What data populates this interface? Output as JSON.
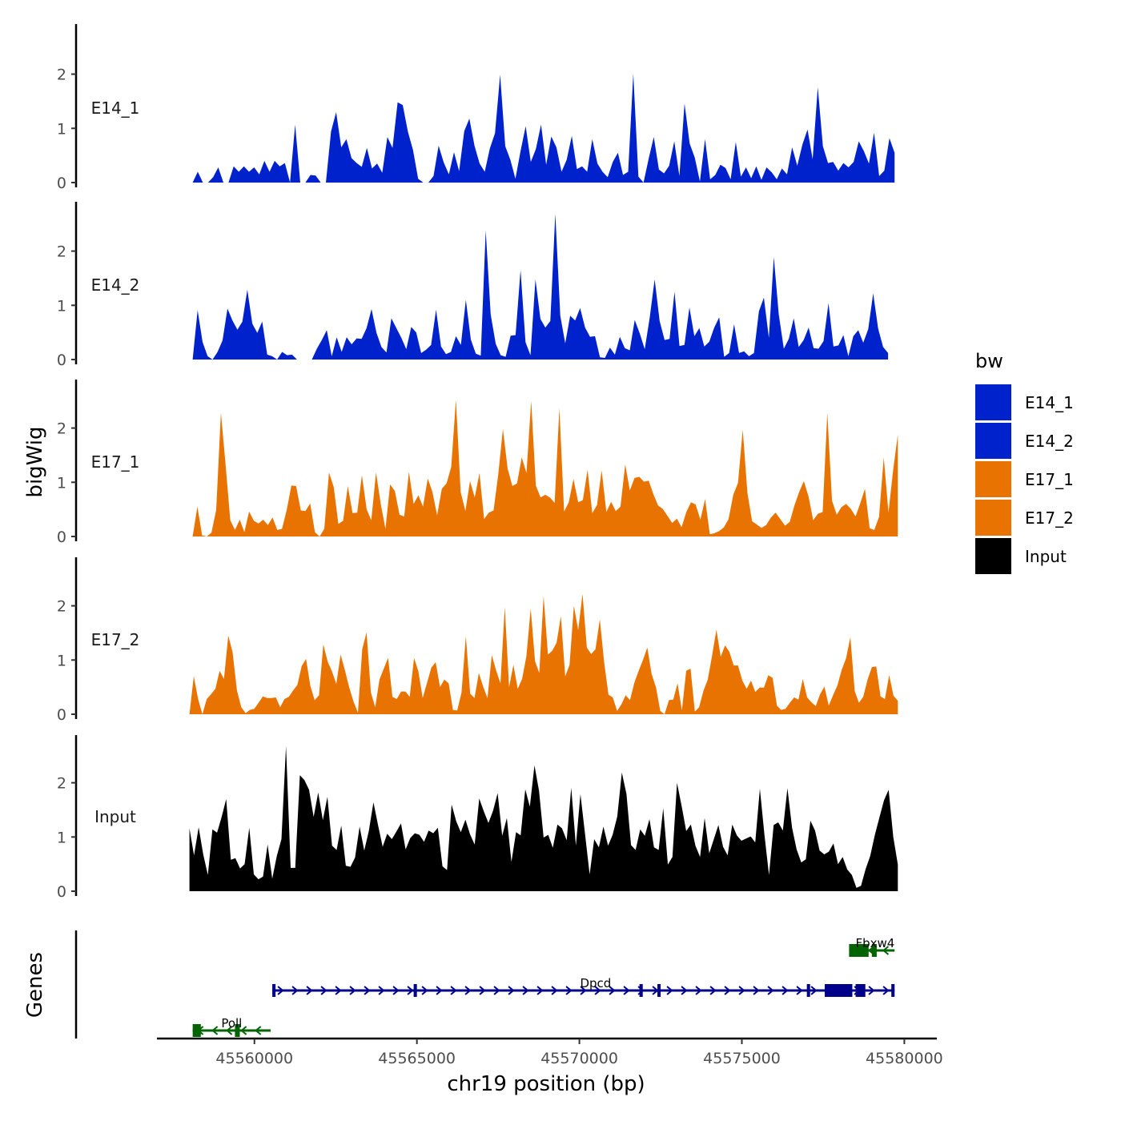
{
  "chart_data": {
    "type": "area",
    "title": "",
    "xlabel": "chr19 position (bp)",
    "ylabel": "bigWig",
    "genes_label": "Genes",
    "xlim": [
      45557000,
      45581000
    ],
    "ylim": [
      0,
      2.8
    ],
    "x_ticks": [
      45560000,
      45565000,
      45570000,
      45575000,
      45580000
    ],
    "x_tick_labels": [
      "45560000",
      "45565000",
      "45570000",
      "45575000",
      "45580000"
    ],
    "y_ticks": [
      0,
      1,
      2
    ],
    "y_tick_labels": [
      "0",
      "1",
      "2"
    ],
    "legend": {
      "title": "bw",
      "entries": [
        {
          "label": "E14_1",
          "color": "#0022CC"
        },
        {
          "label": "E14_2",
          "color": "#0022CC"
        },
        {
          "label": "E17_1",
          "color": "#E87300"
        },
        {
          "label": "E17_2",
          "color": "#E87300"
        },
        {
          "label": "Input",
          "color": "#000000"
        }
      ]
    },
    "series": [
      {
        "name": "E14_1",
        "color": "#0022CC",
        "x_start": 45558100,
        "x_end": 45579700,
        "values": [
          0,
          0.2,
          0,
          0,
          0.1,
          0.28,
          0,
          0,
          0.3,
          0.2,
          0.3,
          0.2,
          0.28,
          0.15,
          0.4,
          0.2,
          0.4,
          0.3,
          0.36,
          0,
          1.07,
          0,
          0,
          0.14,
          0.13,
          0,
          0,
          0.94,
          1.3,
          0.65,
          0.8,
          0.45,
          0.36,
          0.29,
          0.64,
          0.26,
          0.35,
          0.18,
          0.84,
          0.64,
          1.48,
          1.43,
          0.94,
          0.6,
          0.07,
          0,
          0,
          0.12,
          0.68,
          0.37,
          0.15,
          0.56,
          0.21,
          0.95,
          1.18,
          0.68,
          0.35,
          0.2,
          0.63,
          0.91,
          1.99,
          0.67,
          0.42,
          0.07,
          0.58,
          1.04,
          0.38,
          0.62,
          1.07,
          0.33,
          0.85,
          0.65,
          0.2,
          0.42,
          0.86,
          0.25,
          0.3,
          0.2,
          0.8,
          0.35,
          0.2,
          0.1,
          0.38,
          0.55,
          0.14,
          0.2,
          2.01,
          0.11,
          0,
          0.44,
          0.84,
          0.24,
          0.17,
          0.31,
          0.76,
          0.12,
          1.46,
          0.72,
          0.46,
          0.02,
          0.8,
          0.06,
          0.14,
          0.33,
          0.27,
          0.06,
          0.75,
          0.11,
          0.28,
          0.08,
          0.3,
          0.05,
          0.28,
          0.19,
          0.06,
          0.26,
          0.15,
          0.65,
          0.31,
          0.7,
          0.98,
          0.43,
          1.76,
          0.67,
          0.36,
          0.38,
          0.22,
          0.36,
          0.28,
          0.38,
          0.76,
          0.58,
          0.35,
          0.92,
          0.12,
          0.22,
          0.82,
          0.55
        ]
      },
      {
        "name": "E14_2",
        "color": "#0022CC",
        "x_start": 45558100,
        "x_end": 45579500,
        "values": [
          0,
          0.91,
          0.32,
          0.06,
          0,
          0.14,
          0.35,
          0.94,
          0.72,
          0.55,
          0.7,
          1.29,
          0.66,
          0.49,
          0.7,
          0.09,
          0.06,
          0,
          0.14,
          0.08,
          0.09,
          0,
          0,
          0,
          0,
          0.2,
          0.36,
          0.54,
          0.06,
          0.41,
          0.14,
          0.41,
          0.28,
          0.39,
          0.38,
          0.58,
          0.93,
          0.49,
          0.23,
          0.13,
          0.76,
          0.58,
          0.4,
          0.19,
          0.6,
          0.5,
          0.12,
          0.18,
          0.27,
          0.92,
          0.24,
          0.1,
          0.14,
          0.43,
          0.27,
          1.1,
          0.37,
          0.11,
          0.07,
          2.38,
          0.83,
          0.29,
          0.08,
          0.05,
          0.44,
          0.45,
          1.65,
          0.32,
          0.08,
          1.48,
          0.75,
          0.59,
          0.71,
          2.69,
          0.81,
          0.3,
          0.81,
          0.72,
          0.95,
          0.59,
          0.42,
          0.43,
          0.04,
          0.03,
          0.22,
          0.09,
          0.42,
          0.21,
          0.17,
          0.73,
          0.48,
          0.19,
          0.77,
          1.48,
          0.71,
          0.36,
          0.38,
          1.25,
          0.25,
          0.27,
          0.96,
          0.43,
          0.58,
          0.24,
          0.33,
          0.59,
          0.78,
          0.05,
          0.12,
          0.65,
          0.12,
          0.15,
          0.06,
          0.12,
          0.89,
          1.14,
          0.4,
          1.89,
          0.83,
          0.2,
          0.38,
          0.76,
          0.23,
          0.36,
          0.59,
          0.21,
          0.2,
          0.34,
          1.04,
          0.24,
          0.26,
          0.45,
          0.06,
          0.43,
          0.54,
          0.31,
          0.56,
          1.22,
          0.57,
          0.23,
          0.12
        ]
      },
      {
        "name": "E17_1",
        "color": "#E87300",
        "x_start": 45558100,
        "x_end": 45579800,
        "values": [
          0,
          0.55,
          0.02,
          0,
          0.07,
          0.49,
          2.28,
          1.33,
          0.3,
          0.12,
          0.31,
          0.08,
          0.46,
          0.29,
          0.24,
          0.31,
          0.21,
          0.35,
          0.12,
          0.14,
          0.49,
          0.94,
          0.93,
          0.48,
          0.47,
          0.61,
          0.08,
          0,
          0.14,
          1.18,
          0.91,
          0.23,
          0.29,
          0.93,
          0.43,
          0.44,
          1.13,
          0.5,
          0.3,
          1.18,
          0.6,
          0.14,
          0.96,
          0.84,
          0.4,
          0.37,
          1.19,
          0.6,
          0.76,
          0.55,
          1.07,
          0.82,
          0.39,
          0.88,
          0.98,
          1.28,
          2.52,
          0.82,
          0.47,
          1.02,
          0.72,
          1.17,
          0.32,
          0.44,
          0.48,
          1.15,
          1.98,
          1.25,
          0.93,
          0.98,
          1.46,
          1.17,
          2.5,
          0.94,
          0.72,
          0.77,
          0.72,
          0.62,
          2.37,
          0.46,
          0.63,
          1.06,
          0.63,
          0.67,
          1.23,
          0.43,
          0.58,
          1.22,
          0.45,
          0.64,
          0.47,
          0.55,
          1.33,
          0.85,
          1.08,
          1.1,
          1.01,
          1.03,
          0.78,
          0.57,
          0.51,
          0.38,
          0.25,
          0.33,
          0.17,
          0.45,
          0.63,
          0.59,
          0.31,
          0.69,
          0.04,
          0.06,
          0.1,
          0.17,
          0.32,
          0.77,
          0.99,
          1.97,
          0.81,
          0.28,
          0.22,
          0.16,
          0.21,
          0.35,
          0.44,
          0.32,
          0.2,
          0.27,
          0.57,
          0.82,
          1.02,
          0.74,
          0.3,
          0.42,
          0.45,
          2.28,
          0.66,
          0.4,
          0.54,
          0.6,
          0.51,
          0.37,
          0.61,
          0.88,
          0.15,
          0.12,
          0.36,
          1.46,
          0.44,
          1.22,
          1.88
        ]
      },
      {
        "name": "E17_2",
        "color": "#E87300",
        "x_start": 45558000,
        "x_end": 45579800,
        "values": [
          0,
          0.7,
          0.28,
          0,
          0.28,
          0.37,
          0.47,
          0.8,
          0.65,
          1.45,
          1.14,
          0.44,
          0.13,
          0.02,
          0.08,
          0.1,
          0.21,
          0.33,
          0.3,
          0.3,
          0.31,
          0.13,
          0.28,
          0.32,
          0.44,
          0.54,
          0.89,
          1.02,
          0.52,
          0.26,
          0.35,
          1.29,
          0.97,
          0.79,
          0.56,
          1.1,
          0.81,
          0.49,
          0.23,
          0.03,
          1.2,
          1.51,
          0.4,
          0.13,
          0.64,
          0.84,
          1.04,
          0.32,
          0.28,
          0.42,
          0.42,
          0.32,
          1.04,
          0.79,
          0.3,
          0.58,
          0.86,
          0.96,
          0.5,
          0.64,
          0.57,
          0.08,
          0.07,
          0.4,
          1.44,
          0.38,
          0.3,
          0.76,
          0.51,
          0.3,
          1.09,
          0.81,
          0.57,
          1.98,
          0.5,
          0.91,
          0.47,
          0.65,
          1.07,
          1.95,
          0.98,
          0.76,
          2.18,
          1.1,
          1.17,
          1.32,
          1.81,
          0.7,
          0.91,
          2.0,
          1.55,
          2.22,
          1.23,
          1.11,
          1.2,
          1.75,
          0.96,
          0.36,
          0.31,
          0.06,
          0.18,
          0.35,
          0.26,
          0.58,
          0.8,
          1.0,
          1.23,
          0.74,
          0.5,
          0.06,
          0,
          0.26,
          0.27,
          0.57,
          0.07,
          0.8,
          0.84,
          0.05,
          0.13,
          0.43,
          0.64,
          1.08,
          1.56,
          1.06,
          1.27,
          1.15,
          0.9,
          0.9,
          0.62,
          0.47,
          0.62,
          0.41,
          0.49,
          0.49,
          0.72,
          0.67,
          0.16,
          0.08,
          0.1,
          0.21,
          0.31,
          0.27,
          0.65,
          0.31,
          0.22,
          0.15,
          0.37,
          0.51,
          0.16,
          0.35,
          0.53,
          0.82,
          1.03,
          1.42,
          0.43,
          0.21,
          0.32,
          0.64,
          0.87,
          0.88,
          0.33,
          0.28,
          0.72,
          0.34,
          0.25
        ]
      },
      {
        "name": "Input",
        "color": "#000000",
        "x_start": 45558000,
        "x_end": 45579800,
        "values": [
          1.16,
          0.66,
          1.18,
          0.68,
          0.3,
          1.14,
          1.08,
          1.37,
          1.7,
          0.58,
          0.61,
          0.42,
          0.5,
          1.17,
          0.31,
          0.22,
          0.27,
          0.86,
          0.23,
          0.65,
          0.96,
          2.68,
          0.43,
          0.43,
          2.14,
          2.05,
          1.87,
          1.37,
          1.82,
          1.31,
          1.74,
          0.84,
          0.76,
          1.21,
          0.47,
          0.45,
          0.62,
          1.19,
          0.75,
          1.11,
          1.64,
          1.22,
          0.82,
          1.06,
          0.96,
          1.1,
          1.25,
          0.77,
          0.98,
          1.07,
          1.04,
          0.91,
          1.12,
          1.07,
          1.17,
          0.46,
          0.39,
          1.6,
          1.29,
          1.09,
          1.32,
          1.05,
          0.86,
          1.71,
          1.47,
          1.26,
          1.48,
          1.81,
          1.02,
          1.35,
          0.54,
          1.09,
          1.03,
          1.88,
          1.56,
          2.32,
          1.85,
          0.99,
          1.04,
          0.8,
          1.23,
          1.16,
          0.94,
          1.91,
          0.84,
          1.79,
          1.06,
          0.31,
          0.96,
          0.81,
          1.19,
          0.84,
          1.04,
          1.38,
          2.19,
          1.79,
          0.85,
          0.76,
          1.14,
          1.02,
          1.33,
          0.81,
          0.76,
          1.53,
          0.49,
          0.63,
          2.0,
          1.57,
          1.11,
          1.23,
          0.84,
          0.63,
          1.35,
          0.7,
          0.96,
          1.22,
          0.82,
          0.66,
          1.23,
          1.03,
          0.93,
          0.97,
          1.01,
          0.9,
          1.89,
          1.04,
          0.3,
          1.22,
          1.27,
          1.12,
          1.9,
          1.17,
          0.77,
          0.53,
          0.59,
          1.3,
          1.12,
          0.75,
          0.68,
          0.73,
          0.88,
          0.5,
          0.63,
          0.4,
          0.3,
          0.06,
          0.1,
          0.41,
          0.65,
          1.04,
          1.36,
          1.68,
          1.87,
          1.0,
          0.49
        ]
      }
    ],
    "genes": [
      {
        "name": "Fbxw4",
        "color": "#006400",
        "row": 0,
        "strand": "-",
        "start": 45578300,
        "end": 45579700,
        "exons": [
          [
            45578300,
            45578900
          ],
          [
            45579000,
            45579150
          ]
        ],
        "label_x": 45579100
      },
      {
        "name": "Dpcd",
        "color": "#00008B",
        "row": 1,
        "strand": "+",
        "start": 45560550,
        "end": 45579700,
        "exons": [
          [
            45560550,
            45560650
          ],
          [
            45564900,
            45565000
          ],
          [
            45571850,
            45571950
          ],
          [
            45572400,
            45572500
          ],
          [
            45577000,
            45577100
          ],
          [
            45577550,
            45578400
          ],
          [
            45578500,
            45578800
          ],
          [
            45579600,
            45579700
          ]
        ],
        "label_x": 45570500
      },
      {
        "name": "Poll",
        "color": "#006400",
        "row": 2,
        "strand": "-",
        "start": 45558100,
        "end": 45560500,
        "exons": [
          [
            45558100,
            45558350
          ],
          [
            45559400,
            45559550
          ]
        ],
        "label_x": 45559300
      }
    ]
  }
}
